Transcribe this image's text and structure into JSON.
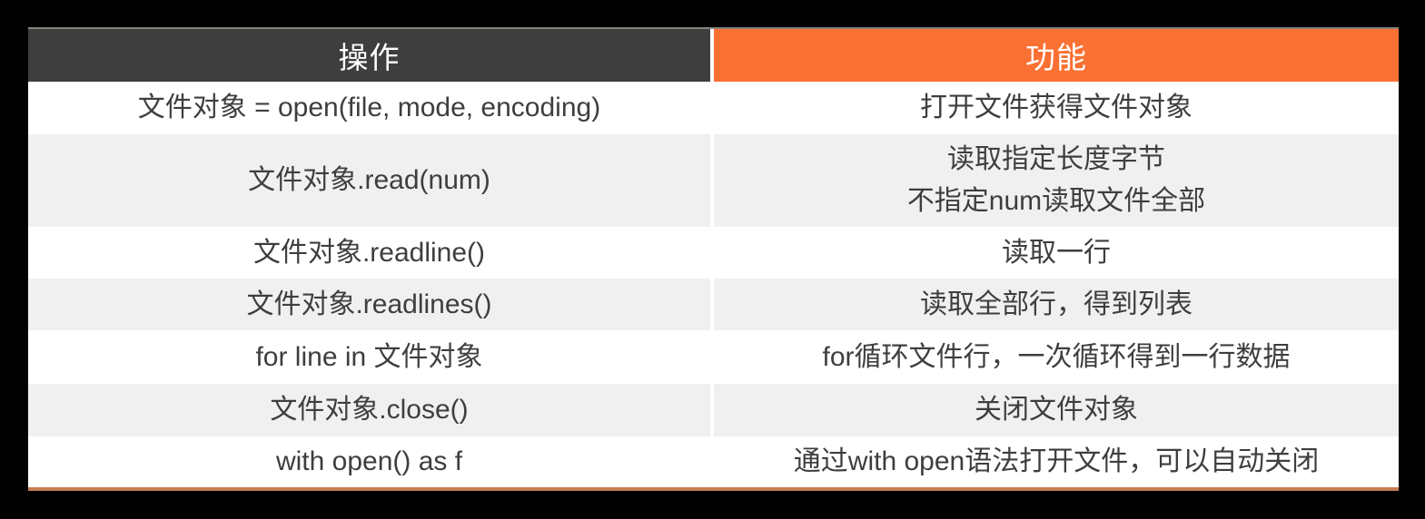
{
  "page": {
    "background": "#000000"
  },
  "table": {
    "header": {
      "operation": {
        "label": "操作",
        "bg": "#3E3E3E",
        "color": "#FFFFFF"
      },
      "function": {
        "label": "功能",
        "bg": "#FA7133",
        "color": "#FFFFFF"
      }
    },
    "style": {
      "row_plain_bg": "#FFFFFF",
      "row_shade_bg": "#F0F0F0",
      "body_text_color": "#3E3E3E",
      "bottom_border_color": "#C67C52",
      "divider_color": "#FFFFFF"
    },
    "rows": [
      {
        "operation": "文件对象 = open(file, mode, encoding)",
        "function": "打开文件获得文件对象"
      },
      {
        "operation": "文件对象.read(num)",
        "function": "读取指定长度字节\n不指定num读取文件全部"
      },
      {
        "operation": "文件对象.readline()",
        "function": "读取一行"
      },
      {
        "operation": "文件对象.readlines()",
        "function": "读取全部行，得到列表"
      },
      {
        "operation": "for line in 文件对象",
        "function": "for循环文件行，一次循环得到一行数据"
      },
      {
        "operation": "文件对象.close()",
        "function": "关闭文件对象"
      },
      {
        "operation": "with open() as f",
        "function": "通过with open语法打开文件，可以自动关闭"
      }
    ]
  }
}
